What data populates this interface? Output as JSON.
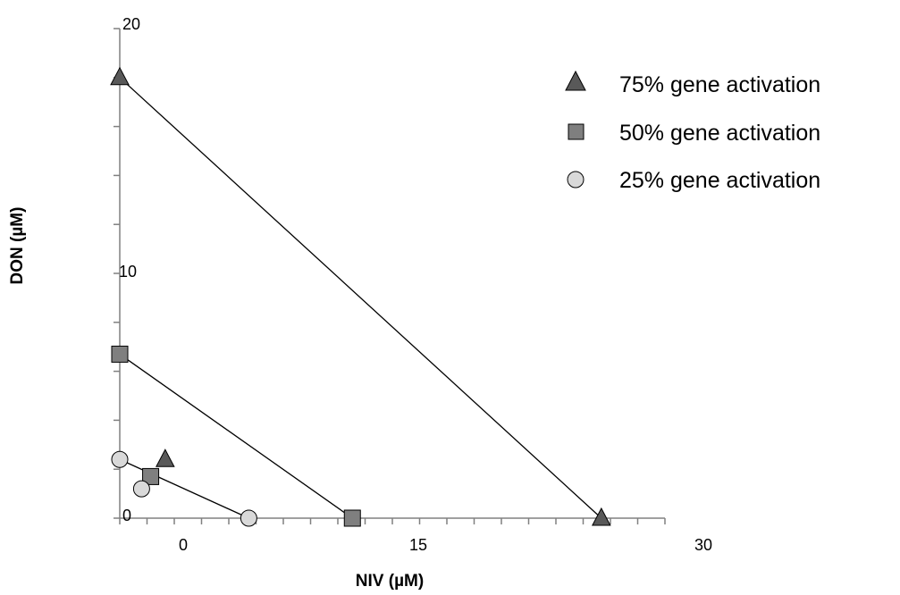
{
  "chart_data": {
    "type": "scatter",
    "xlabel": "NIV (µM)",
    "ylabel": "DON (µM)",
    "x_tick_labels": [
      "0",
      "15",
      "30"
    ],
    "y_tick_labels": [
      "0",
      "10",
      "20"
    ],
    "xlim": [
      -2.3,
      27.7
    ],
    "ylim": [
      0,
      20
    ],
    "legend_position": "top-right",
    "series": [
      {
        "name": "75% gene activation",
        "marker": "triangle",
        "color": "#595959",
        "isobole": [
          [
            -2.3,
            18
          ],
          [
            24.2,
            0
          ]
        ],
        "points": [
          [
            -2.3,
            18
          ],
          [
            24.2,
            0
          ],
          [
            0.2,
            2.4
          ]
        ]
      },
      {
        "name": "50% gene activation",
        "marker": "square",
        "color": "#7f7f7f",
        "isobole": [
          [
            -2.3,
            6.7
          ],
          [
            10.5,
            0
          ]
        ],
        "points": [
          [
            -2.3,
            6.7
          ],
          [
            10.5,
            0
          ],
          [
            -0.6,
            1.7
          ]
        ]
      },
      {
        "name": "25% gene activation",
        "marker": "circle",
        "color": "#d9d9d9",
        "isobole": [
          [
            -2.3,
            2.4
          ],
          [
            4.8,
            0
          ]
        ],
        "points": [
          [
            -2.3,
            2.4
          ],
          [
            4.8,
            0
          ],
          [
            -1.1,
            1.2
          ]
        ]
      }
    ]
  }
}
